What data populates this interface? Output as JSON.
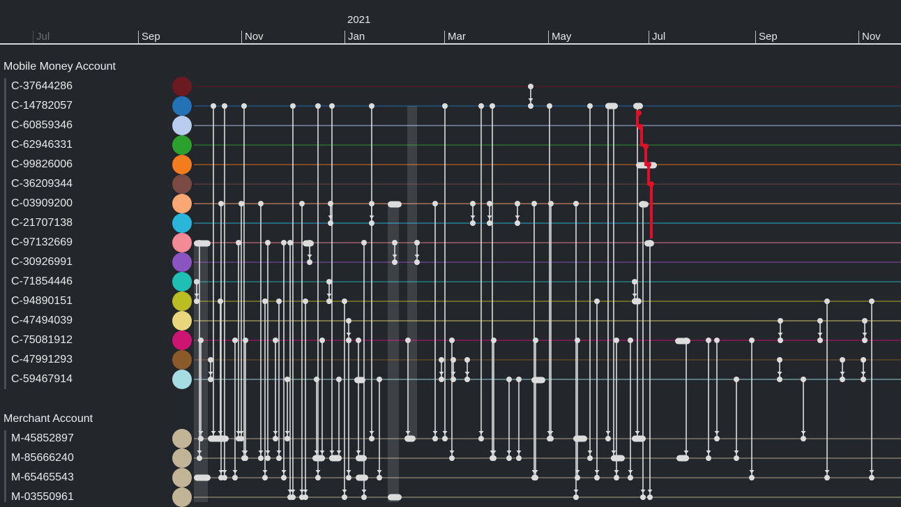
{
  "timeline": {
    "year_label": "2021",
    "months": [
      "Jul",
      "Sep",
      "Nov",
      "Jan",
      "Mar",
      "May",
      "Jul",
      "Sep",
      "Nov"
    ]
  },
  "groups": [
    {
      "title": "Mobile Money Account",
      "accounts": [
        {
          "id": "C-37644286",
          "color": "#6b1a22"
        },
        {
          "id": "C-14782057",
          "color": "#2471b5"
        },
        {
          "id": "C-60859346",
          "color": "#b8cdf0"
        },
        {
          "id": "C-62946331",
          "color": "#2ca02c"
        },
        {
          "id": "C-99826006",
          "color": "#f47c1c"
        },
        {
          "id": "C-36209344",
          "color": "#7b4a44"
        },
        {
          "id": "C-03909200",
          "color": "#fba774"
        },
        {
          "id": "C-21707138",
          "color": "#29b6d8"
        },
        {
          "id": "C-97132669",
          "color": "#f48a96"
        },
        {
          "id": "C-30926991",
          "color": "#8a55c0"
        },
        {
          "id": "C-71854446",
          "color": "#1fbfb5"
        },
        {
          "id": "C-94890151",
          "color": "#bcbd22"
        },
        {
          "id": "C-47494039",
          "color": "#e8d57c"
        },
        {
          "id": "C-75081912",
          "color": "#cc1470"
        },
        {
          "id": "C-47991293",
          "color": "#8b5a2b"
        },
        {
          "id": "C-59467914",
          "color": "#a6dde3"
        }
      ]
    },
    {
      "title": "Merchant Account",
      "accounts": [
        {
          "id": "M-45852897",
          "color": "#c2b496"
        },
        {
          "id": "M-85666240",
          "color": "#c2b496"
        },
        {
          "id": "M-65465543",
          "color": "#c2b496"
        },
        {
          "id": "M-03550961",
          "color": "#c2b496"
        }
      ]
    }
  ],
  "colors": {
    "background": "#23262b",
    "transaction": "#dcdcdc",
    "flagged": "#e0102a"
  }
}
